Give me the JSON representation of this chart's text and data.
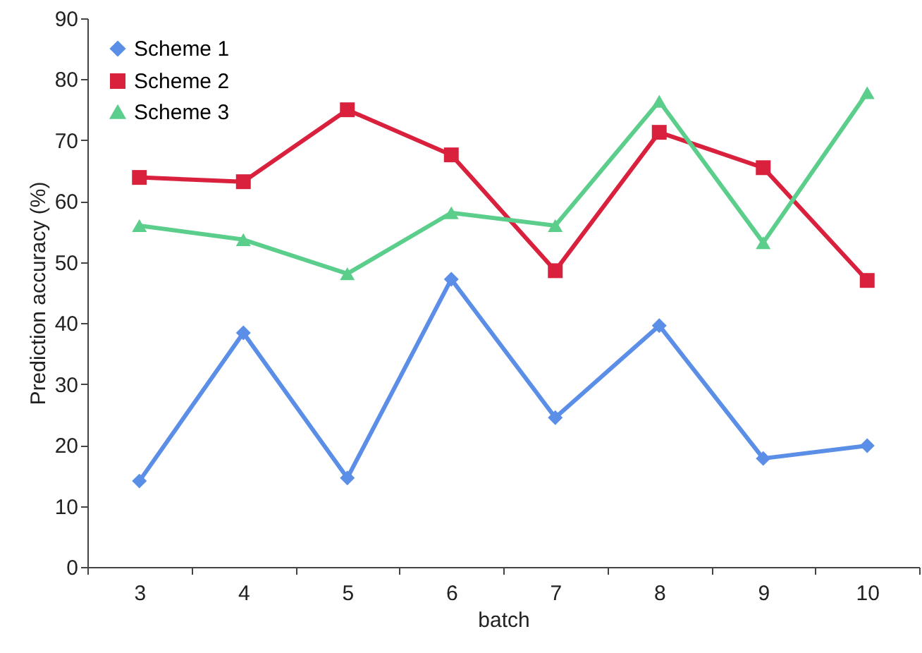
{
  "chart_data": {
    "type": "line",
    "xlabel": "batch",
    "ylabel": "Prediction accuracy (%)",
    "categories": [
      "3",
      "4",
      "5",
      "6",
      "7",
      "8",
      "9",
      "10"
    ],
    "ylim": [
      0,
      90
    ],
    "yticks": [
      0,
      10,
      20,
      30,
      40,
      50,
      60,
      70,
      80,
      90
    ],
    "grid": false,
    "legend": "top left",
    "series": [
      {
        "name": "Scheme 1",
        "color": "#5b8ee6",
        "marker": "diamond",
        "values": [
          14.1,
          38.4,
          14.6,
          47.2,
          24.5,
          39.6,
          17.8,
          19.9
        ]
      },
      {
        "name": "Scheme 2",
        "color": "#d9213e",
        "marker": "square",
        "values": [
          63.9,
          63.2,
          75,
          67.6,
          48.6,
          71.3,
          65.5,
          47
        ]
      },
      {
        "name": "Scheme 3",
        "color": "#5cce8c",
        "marker": "triangle",
        "values": [
          56,
          53.7,
          48.1,
          58.1,
          56,
          76.4,
          53.2,
          77.8
        ]
      }
    ]
  }
}
